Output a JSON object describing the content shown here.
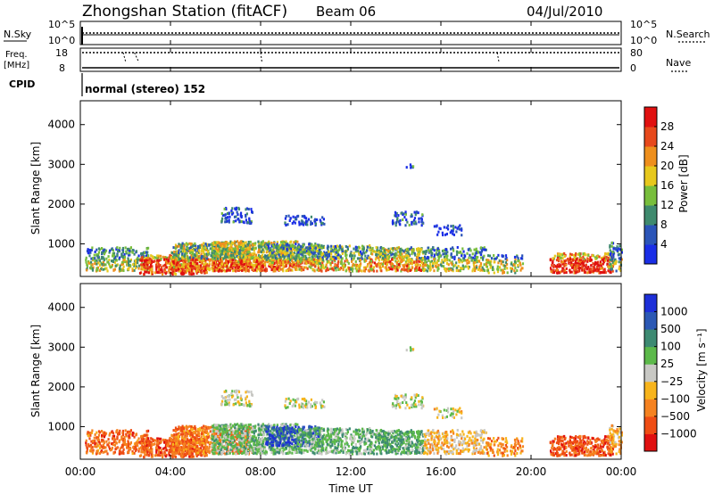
{
  "header": {
    "station": "Zhongshan Station (fitACF)",
    "beam": "Beam 06",
    "date": "04/Jul/2010"
  },
  "top_panels": {
    "nsky_label": "N.Sky",
    "nsky_ticks": [
      "10^5",
      "10^0"
    ],
    "nsearch_label": "N.Search",
    "nsearch_ticks": [
      "10^5",
      "10^0"
    ],
    "freq_label": "Freq.",
    "freq_unit": "[MHz]",
    "freq_ticks": [
      "18",
      "8"
    ],
    "nave_label": "Nave",
    "nave_ticks": [
      "80",
      "0"
    ],
    "cpid_label": "CPID",
    "cpid_value": "normal (stereo) 152"
  },
  "colors": {
    "power": [
      "#1a2ee6",
      "#2b55b8",
      "#3f8a6e",
      "#78be3c",
      "#e7c81d",
      "#ee8f1d",
      "#e7491c",
      "#e01010"
    ],
    "velocity": [
      "#e01010",
      "#ef4d14",
      "#f58220",
      "#f7b41c",
      "#c8c8c4",
      "#5cb94a",
      "#3d8a72",
      "#2b58b4",
      "#1d2fd8"
    ]
  },
  "chart_data": [
    {
      "type": "heatmap",
      "title": "Power",
      "xlabel": "Time UT",
      "ylabel": "Slant Range [km]",
      "x_ticks": [
        "00:00",
        "04:00",
        "08:00",
        "12:00",
        "16:00",
        "20:00",
        "00:00"
      ],
      "y_ticks": [
        "1000",
        "2000",
        "3000",
        "4000"
      ],
      "xlim": [
        0,
        24
      ],
      "ylim": [
        180,
        4600
      ],
      "colorbar_label": "Power [dB]",
      "colorbar_ticks": [
        "4",
        "8",
        "12",
        "16",
        "20",
        "24",
        "28"
      ],
      "colorbar_range": [
        0,
        32
      ]
    },
    {
      "type": "heatmap",
      "title": "Velocity",
      "xlabel": "Time UT",
      "ylabel": "Slant Range [km]",
      "x_ticks": [
        "00:00",
        "04:00",
        "08:00",
        "12:00",
        "16:00",
        "20:00",
        "00:00"
      ],
      "y_ticks": [
        "1000",
        "2000",
        "3000",
        "4000"
      ],
      "xlim": [
        0,
        24
      ],
      "ylim": [
        180,
        4600
      ],
      "colorbar_label": "Velocity [m s⁻¹]",
      "colorbar_ticks": [
        "1000",
        "500",
        "100",
        "25",
        "−25",
        "−100",
        "−500",
        "−1000"
      ]
    }
  ]
}
